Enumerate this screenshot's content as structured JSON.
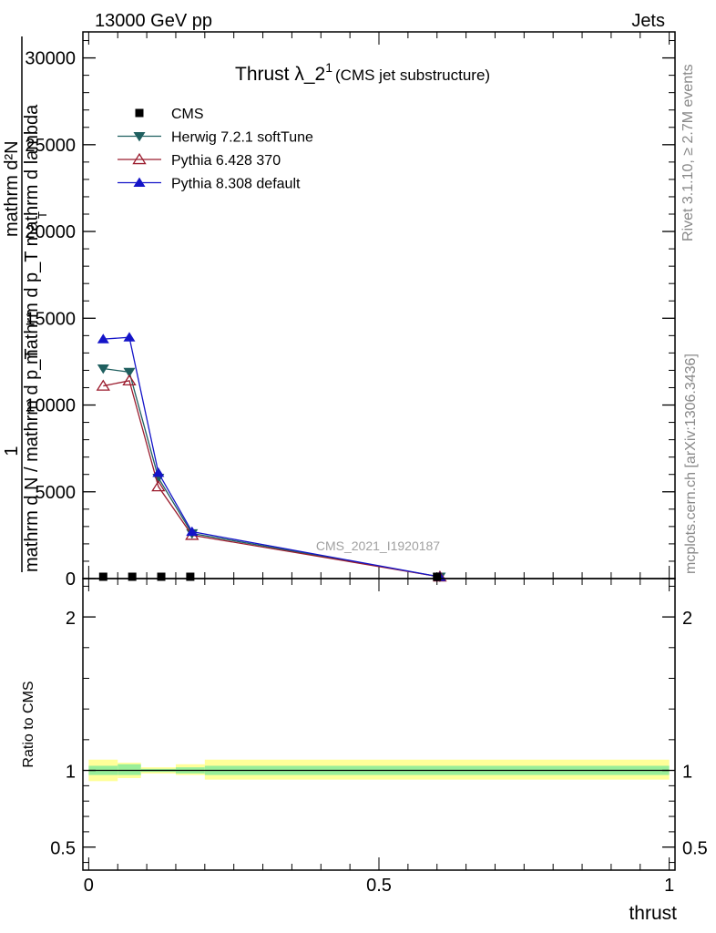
{
  "header": {
    "left": "13000 GeV pp",
    "right": "Jets"
  },
  "side_labels": {
    "rivet": "Rivet 3.1.10, ≥ 2.7M events",
    "mcplots": "mcplots.cern.ch [arXiv:1306.3436]"
  },
  "watermark": "CMS_2021_I1920187",
  "chart_data": [
    {
      "panel": "main",
      "type": "line",
      "title": "Thrust λ_2",
      "title_sup": "1",
      "subtitle": "(CMS jet substructure)",
      "ylabel_numerator": "1",
      "ylabel_denominator": "mathrm d N / mathrm d p_T",
      "ylabel_numerator2": "mathrm d²N",
      "ylabel_denominator2": "mathrm d p_T mathrm d lambda",
      "ylabel_sub": "T",
      "ylim": [
        0,
        31500
      ],
      "xlim": [
        -0.01,
        1.01
      ],
      "yticks": [
        0,
        5000,
        10000,
        15000,
        20000,
        25000,
        30000
      ],
      "yticklabels": [
        "0",
        "5000",
        "10000",
        "15000",
        "20000",
        "25000",
        "30000"
      ],
      "legend_position": "top-left",
      "series": [
        {
          "name": "CMS",
          "color": "#000000",
          "marker": "square",
          "x": [
            0.025,
            0.075,
            0.125,
            0.175,
            0.6
          ],
          "y": [
            0,
            0,
            0,
            0,
            0
          ]
        },
        {
          "name": "Herwig 7.2.1 softTune",
          "color": "#1f5f5f",
          "marker": "triangle-down",
          "x": [
            0.025,
            0.07,
            0.12,
            0.178,
            0.605
          ],
          "y": [
            12100,
            11900,
            5800,
            2600,
            100
          ]
        },
        {
          "name": "Pythia 6.428 370",
          "color": "#9b1c2e",
          "marker": "triangle-up-open",
          "x": [
            0.025,
            0.07,
            0.12,
            0.178,
            0.605
          ],
          "y": [
            11100,
            11400,
            5300,
            2500,
            100
          ]
        },
        {
          "name": "Pythia 8.308 default",
          "color": "#1414c8",
          "marker": "triangle-up",
          "x": [
            0.025,
            0.07,
            0.12,
            0.178,
            0.605
          ],
          "y": [
            13800,
            13900,
            6100,
            2700,
            100
          ]
        }
      ]
    },
    {
      "panel": "ratio",
      "type": "area",
      "ylabel": "Ratio to CMS",
      "ylim": [
        0.35,
        2.25
      ],
      "xlim": [
        -0.01,
        1.01
      ],
      "xlabel": "thrust",
      "yticks": [
        0.5,
        1,
        2
      ],
      "yticklabels": [
        "0.5",
        "1",
        "2"
      ],
      "xticks": [
        0,
        0.5,
        1
      ],
      "xticklabels": [
        "0",
        "0.5",
        "1"
      ],
      "reference_line": 1,
      "bands": {
        "edges": [
          0,
          0.05,
          0.09,
          0.15,
          0.2,
          1.0
        ],
        "outer_color": "#ffff99",
        "inner_color": "#99ee99",
        "outer_lo": [
          0.93,
          0.95,
          0.98,
          0.97,
          0.94
        ],
        "outer_hi": [
          1.07,
          1.05,
          1.02,
          1.04,
          1.07
        ],
        "inner_lo": [
          0.97,
          0.97,
          0.99,
          0.98,
          0.97
        ],
        "inner_hi": [
          1.03,
          1.04,
          1.01,
          1.02,
          1.03
        ]
      }
    }
  ]
}
